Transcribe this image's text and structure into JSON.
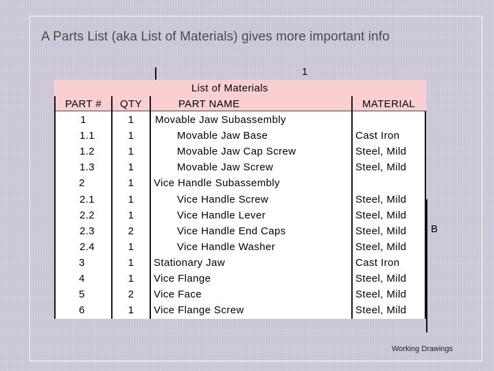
{
  "slide": {
    "title": "A Parts List (aka List of Materials) gives more important info",
    "footer": "Working Drawings"
  },
  "drawing": {
    "revision_number": "1",
    "sheet_letter": "B"
  },
  "parts_list": {
    "title": "List of Materials",
    "headers": {
      "part_number": "PART #",
      "qty": "QTY",
      "part_name": "PART NAME",
      "material": "MATERIAL"
    },
    "rows": [
      {
        "part_number": "1",
        "qty": "1",
        "part_name": "Movable Jaw Subassembly",
        "material": "",
        "level": 0
      },
      {
        "part_number": "1.1",
        "qty": "1",
        "part_name": "Movable Jaw Base",
        "material": "Cast Iron",
        "level": 1
      },
      {
        "part_number": "1.2",
        "qty": "1",
        "part_name": "Movable Jaw Cap Screw",
        "material": "Steel, Mild",
        "level": 1
      },
      {
        "part_number": "1.3",
        "qty": "1",
        "part_name": "Movable Jaw Screw",
        "material": "Steel, Mild",
        "level": 1
      },
      {
        "part_number": "2",
        "qty": "1",
        "part_name": "Vice Handle Subassembly",
        "material": "",
        "level": 0
      },
      {
        "part_number": "2.1",
        "qty": "1",
        "part_name": "Vice Handle Screw",
        "material": "Steel, Mild",
        "level": 1
      },
      {
        "part_number": "2.2",
        "qty": "1",
        "part_name": "Vice Handle Lever",
        "material": "Steel, Mild",
        "level": 1
      },
      {
        "part_number": "2.3",
        "qty": "2",
        "part_name": "Vice Handle End Caps",
        "material": "Steel, Mild",
        "level": 1
      },
      {
        "part_number": "2.4",
        "qty": "1",
        "part_name": "Vice Handle Washer",
        "material": "Steel, Mild",
        "level": 1
      },
      {
        "part_number": "3",
        "qty": "1",
        "part_name": "Stationary Jaw",
        "material": "Cast Iron",
        "level": 0
      },
      {
        "part_number": "4",
        "qty": "1",
        "part_name": "Vice Flange",
        "material": "Steel, Mild",
        "level": 0
      },
      {
        "part_number": "5",
        "qty": "2",
        "part_name": "Vice Face",
        "material": "Steel, Mild",
        "level": 0
      },
      {
        "part_number": "6",
        "qty": "1",
        "part_name": "Vice Flange Screw",
        "material": "Steel, Mild",
        "level": 0
      }
    ]
  }
}
